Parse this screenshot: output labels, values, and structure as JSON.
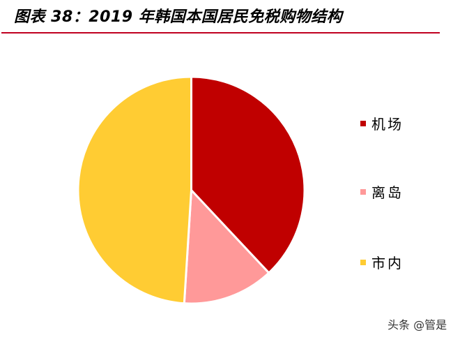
{
  "title": "图表 38：2019 年韩国本国居民免税购物结构",
  "watermark": "头条 @管是",
  "colors": {
    "title_rule": "#C00020",
    "airport": "#C00000",
    "island": "#FF9999",
    "downtown": "#FFCC33"
  },
  "legend": {
    "items": [
      {
        "label": "机场",
        "color": "#C00000"
      },
      {
        "label": "离岛",
        "color": "#FF9999"
      },
      {
        "label": "市内",
        "color": "#FFCC33"
      }
    ]
  },
  "chart_data": {
    "type": "pie",
    "title": "图表 38：2019 年韩国本国居民免税购物结构",
    "categories": [
      "机场",
      "离岛",
      "市内"
    ],
    "values": [
      38,
      13,
      49
    ],
    "unit": "%",
    "colors": [
      "#C00000",
      "#FF9999",
      "#FFCC33"
    ],
    "start_angle": "12 o'clock, clockwise",
    "legend_position": "right",
    "data_labels": false
  }
}
